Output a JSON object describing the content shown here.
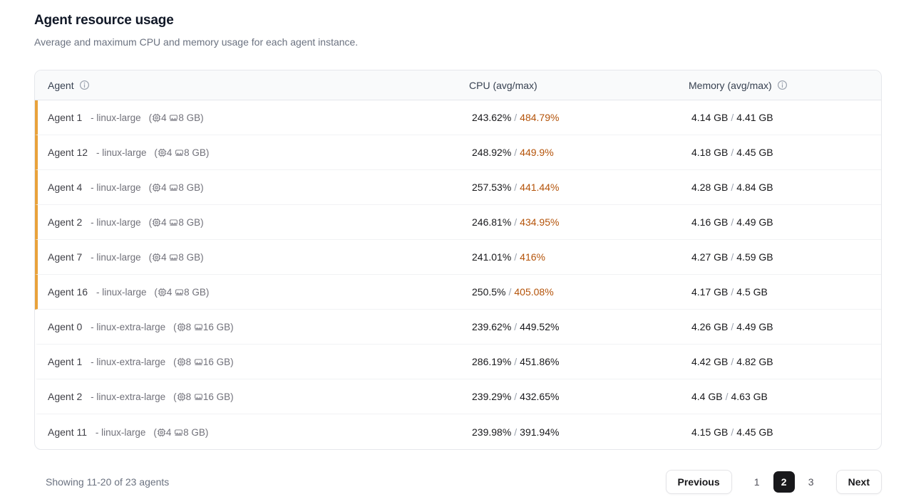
{
  "header": {
    "title": "Agent resource usage",
    "subtitle": "Average and maximum CPU and memory usage for each agent instance."
  },
  "table": {
    "columns": [
      {
        "label": "Agent",
        "info_icon": true
      },
      {
        "label": "CPU (avg/max)",
        "info_icon": false
      },
      {
        "label": "Memory (avg/max)",
        "info_icon": true
      }
    ],
    "rows": [
      {
        "name": "Agent 1",
        "machine": "linux-large",
        "cpus": "4",
        "ram": "8 GB",
        "cpu_avg": "243.62%",
        "cpu_max": "484.79%",
        "mem_avg": "4.14 GB",
        "mem_max": "4.41 GB",
        "cpu_max_alert": true
      },
      {
        "name": "Agent 12",
        "machine": "linux-large",
        "cpus": "4",
        "ram": "8 GB",
        "cpu_avg": "248.92%",
        "cpu_max": "449.9%",
        "mem_avg": "4.18 GB",
        "mem_max": "4.45 GB",
        "cpu_max_alert": true
      },
      {
        "name": "Agent 4",
        "machine": "linux-large",
        "cpus": "4",
        "ram": "8 GB",
        "cpu_avg": "257.53%",
        "cpu_max": "441.44%",
        "mem_avg": "4.28 GB",
        "mem_max": "4.84 GB",
        "cpu_max_alert": true
      },
      {
        "name": "Agent 2",
        "machine": "linux-large",
        "cpus": "4",
        "ram": "8 GB",
        "cpu_avg": "246.81%",
        "cpu_max": "434.95%",
        "mem_avg": "4.16 GB",
        "mem_max": "4.49 GB",
        "cpu_max_alert": true
      },
      {
        "name": "Agent 7",
        "machine": "linux-large",
        "cpus": "4",
        "ram": "8 GB",
        "cpu_avg": "241.01%",
        "cpu_max": "416%",
        "mem_avg": "4.27 GB",
        "mem_max": "4.59 GB",
        "cpu_max_alert": true
      },
      {
        "name": "Agent 16",
        "machine": "linux-large",
        "cpus": "4",
        "ram": "8 GB",
        "cpu_avg": "250.5%",
        "cpu_max": "405.08%",
        "mem_avg": "4.17 GB",
        "mem_max": "4.5 GB",
        "cpu_max_alert": true
      },
      {
        "name": "Agent 0",
        "machine": "linux-extra-large",
        "cpus": "8",
        "ram": "16 GB",
        "cpu_avg": "239.62%",
        "cpu_max": "449.52%",
        "mem_avg": "4.26 GB",
        "mem_max": "4.49 GB",
        "cpu_max_alert": false
      },
      {
        "name": "Agent 1",
        "machine": "linux-extra-large",
        "cpus": "8",
        "ram": "16 GB",
        "cpu_avg": "286.19%",
        "cpu_max": "451.86%",
        "mem_avg": "4.42 GB",
        "mem_max": "4.82 GB",
        "cpu_max_alert": false
      },
      {
        "name": "Agent 2",
        "machine": "linux-extra-large",
        "cpus": "8",
        "ram": "16 GB",
        "cpu_avg": "239.29%",
        "cpu_max": "432.65%",
        "mem_avg": "4.4 GB",
        "mem_max": "4.63 GB",
        "cpu_max_alert": false
      },
      {
        "name": "Agent 11",
        "machine": "linux-large",
        "cpus": "4",
        "ram": "8 GB",
        "cpu_avg": "239.98%",
        "cpu_max": "391.94%",
        "mem_avg": "4.15 GB",
        "mem_max": "4.45 GB",
        "cpu_max_alert": false
      }
    ]
  },
  "colors": {
    "alert_accent": "#e9a23b",
    "alert_text": "#b45309"
  },
  "footer": {
    "showing": "Showing 11-20 of 23 agents",
    "previous_label": "Previous",
    "pages": [
      "1",
      "2",
      "3"
    ],
    "active_page": "2",
    "next_label": "Next"
  }
}
